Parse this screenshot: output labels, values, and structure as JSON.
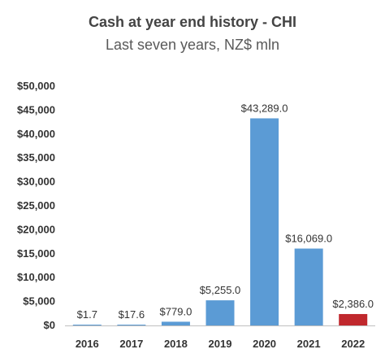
{
  "chart_data": {
    "type": "bar",
    "title": "Cash at year end history - CHI",
    "subtitle": "Last seven years, NZ$ mln",
    "categories": [
      "2016",
      "2017",
      "2018",
      "2019",
      "2020",
      "2021",
      "2022"
    ],
    "values": [
      1.7,
      17.6,
      779.0,
      5255.0,
      43289.0,
      16069.0,
      2386.0
    ],
    "data_labels": [
      "$1.7",
      "$17.6",
      "$779.0",
      "$5,255.0",
      "$43,289.0",
      "$16,069.0",
      "$2,386.0"
    ],
    "ylim": [
      0,
      50000
    ],
    "yticks": [
      0,
      5000,
      10000,
      15000,
      20000,
      25000,
      30000,
      35000,
      40000,
      45000,
      50000
    ],
    "ytick_labels": [
      "$0",
      "$5,000",
      "$10,000",
      "$15,000",
      "$20,000",
      "$25,000",
      "$30,000",
      "$35,000",
      "$40,000",
      "$45,000",
      "$50,000"
    ],
    "grid": false,
    "colors": {
      "default_bar": "#5b9bd5",
      "highlight_bar": "#c0282d",
      "axis": "#bfbfbf"
    },
    "highlight_index": 6
  }
}
